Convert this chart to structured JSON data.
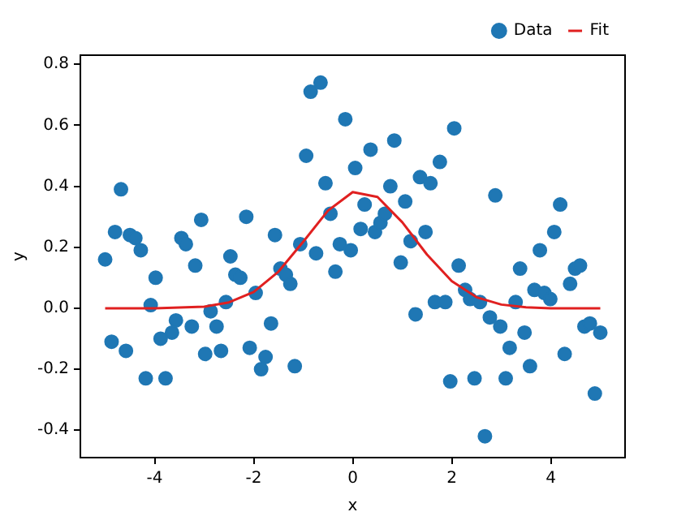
{
  "chart_data": {
    "type": "scatter",
    "xlabel": "x",
    "ylabel": "y",
    "xlim": [
      -5.5,
      5.5
    ],
    "ylim": [
      -0.49,
      0.83
    ],
    "xticks": [
      -4,
      -2,
      0,
      2,
      4
    ],
    "yticks": [
      -0.4,
      -0.2,
      {
        "value": 0,
        "label": "0.0"
      },
      0.2,
      0.4,
      0.6,
      0.8
    ],
    "grid": false,
    "legend": "top right",
    "marker": "circle",
    "series": [
      {
        "name": "Data",
        "color": "#1f77b4",
        "x": [
          -5.0,
          -4.68,
          -4.8,
          -4.5,
          -4.39,
          -4.28,
          -4.87,
          -4.58,
          -4.08,
          -3.98,
          -4.18,
          -3.78,
          -3.88,
          -3.65,
          -3.57,
          -3.46,
          -3.37,
          -3.18,
          -3.06,
          -3.25,
          -2.87,
          -2.75,
          -2.98,
          -2.66,
          -2.56,
          -2.47,
          -2.37,
          -2.27,
          -2.15,
          -1.96,
          -2.08,
          -1.76,
          -1.85,
          -1.65,
          -1.57,
          -1.46,
          -1.35,
          -1.26,
          -1.17,
          -1.06,
          -0.94,
          -0.85,
          -0.65,
          -0.74,
          -0.55,
          -0.45,
          -0.35,
          -0.26,
          -0.15,
          -0.04,
          0.05,
          0.16,
          0.24,
          0.36,
          0.45,
          0.56,
          0.65,
          0.76,
          0.84,
          0.97,
          1.06,
          1.17,
          1.27,
          1.36,
          1.47,
          1.57,
          1.66,
          1.76,
          1.87,
          1.97,
          2.05,
          2.14,
          2.27,
          2.37,
          2.46,
          2.57,
          2.67,
          2.77,
          2.88,
          2.98,
          3.09,
          3.17,
          3.29,
          3.38,
          3.47,
          3.58,
          3.67,
          3.78,
          3.87,
          3.99,
          4.07,
          4.19,
          4.28,
          4.39,
          4.49,
          4.59,
          4.68,
          4.79,
          4.89,
          5.0
        ],
        "values": [
          0.16,
          0.39,
          0.25,
          0.24,
          0.23,
          0.19,
          -0.11,
          -0.14,
          0.01,
          0.1,
          -0.23,
          -0.23,
          -0.1,
          -0.08,
          -0.04,
          0.23,
          0.21,
          0.14,
          0.29,
          -0.06,
          -0.01,
          -0.06,
          -0.15,
          -0.14,
          0.02,
          0.17,
          0.11,
          0.1,
          0.3,
          0.05,
          -0.13,
          -0.16,
          -0.2,
          -0.05,
          0.24,
          0.13,
          0.11,
          0.08,
          -0.19,
          0.21,
          0.5,
          0.71,
          0.74,
          0.18,
          0.41,
          0.31,
          0.12,
          0.21,
          0.62,
          0.19,
          0.46,
          0.26,
          0.34,
          0.52,
          0.25,
          0.28,
          0.31,
          0.4,
          0.55,
          0.15,
          0.35,
          0.22,
          -0.02,
          0.43,
          0.25,
          0.41,
          0.02,
          0.48,
          0.02,
          -0.24,
          0.59,
          0.14,
          0.06,
          0.03,
          -0.23,
          0.02,
          -0.42,
          -0.03,
          0.37,
          -0.06,
          -0.23,
          -0.13,
          0.02,
          0.13,
          -0.08,
          -0.19,
          0.06,
          0.19,
          0.05,
          0.03,
          0.25,
          0.34,
          -0.15,
          0.08,
          0.13,
          0.14,
          -0.06,
          -0.05,
          -0.28,
          -0.08
        ]
      },
      {
        "name": "Fit",
        "type": "line",
        "color": "#e02020",
        "marker": "none",
        "x": [
          -5,
          -4,
          -3,
          -2.5,
          -2,
          -1.5,
          -1,
          -0.5,
          0,
          0.5,
          1,
          1.5,
          2,
          2.5,
          3,
          3.5,
          4,
          5
        ],
        "values": [
          0,
          0,
          0.005,
          0.019,
          0.053,
          0.12,
          0.218,
          0.32,
          0.381,
          0.365,
          0.282,
          0.176,
          0.089,
          0.036,
          0.012,
          0.003,
          0,
          0
        ]
      }
    ]
  }
}
